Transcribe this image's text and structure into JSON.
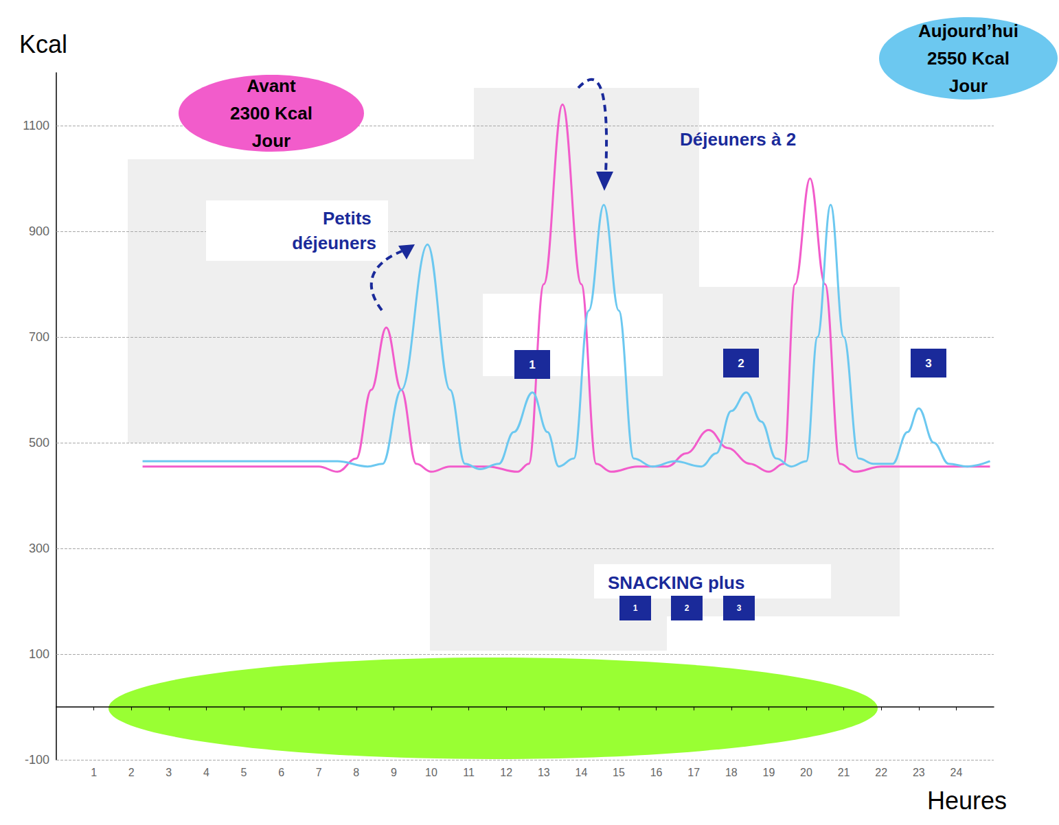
{
  "chart_data": {
    "type": "line",
    "y_label": "Kcal",
    "x_label": "Heures",
    "xlim": [
      0,
      25
    ],
    "xticks": [
      1,
      2,
      3,
      4,
      5,
      6,
      7,
      8,
      9,
      10,
      11,
      12,
      13,
      14,
      15,
      16,
      17,
      18,
      19,
      20,
      21,
      22,
      23,
      24
    ],
    "ylim": [
      -100,
      1200
    ],
    "yticks": [
      -100,
      100,
      300,
      500,
      700,
      900,
      1100
    ],
    "grid": true,
    "annotations": [
      "Petits déjeuners",
      "Déjeuners à 2",
      "SNACKING plus",
      "1",
      "2",
      "3"
    ],
    "series": [
      {
        "name": "Avant 2300 Kcal Jour",
        "color": "#f25ccb",
        "x": [
          2.3,
          7.0,
          7.5,
          8.0,
          8.4,
          8.8,
          9.2,
          9.6,
          10.0,
          10.5,
          11.5,
          12.3,
          12.6,
          13.0,
          13.5,
          14.0,
          14.4,
          14.8,
          15.5,
          16.3,
          16.8,
          17.4,
          17.9,
          18.5,
          19.0,
          19.4,
          19.7,
          20.1,
          20.5,
          20.9,
          21.3,
          22.0,
          24.9
        ],
        "values": [
          455,
          455,
          445,
          470,
          600,
          718,
          600,
          460,
          445,
          455,
          455,
          445,
          460,
          800,
          1140,
          800,
          460,
          445,
          455,
          455,
          480,
          524,
          490,
          460,
          445,
          460,
          800,
          1000,
          800,
          460,
          445,
          455,
          455
        ]
      },
      {
        "name": "Aujourd’hui 2550 Kcal Jour",
        "color": "#6cc8f0",
        "x": [
          2.3,
          7.5,
          8.3,
          8.7,
          9.2,
          9.9,
          10.5,
          10.9,
          11.3,
          11.8,
          12.2,
          12.7,
          13.1,
          13.4,
          13.8,
          14.2,
          14.6,
          15.0,
          15.4,
          15.9,
          16.5,
          17.2,
          17.6,
          18.0,
          18.4,
          18.8,
          19.2,
          19.6,
          20.0,
          20.3,
          20.65,
          21.0,
          21.4,
          21.8,
          22.3,
          22.7,
          23.0,
          23.4,
          23.8,
          24.3,
          24.9
        ],
        "values": [
          465,
          465,
          455,
          460,
          600,
          875,
          600,
          460,
          450,
          460,
          520,
          595,
          520,
          455,
          470,
          750,
          950,
          750,
          470,
          455,
          465,
          455,
          480,
          560,
          595,
          540,
          470,
          455,
          465,
          700,
          950,
          700,
          470,
          460,
          460,
          520,
          565,
          500,
          460,
          455,
          465
        ]
      }
    ]
  }
}
